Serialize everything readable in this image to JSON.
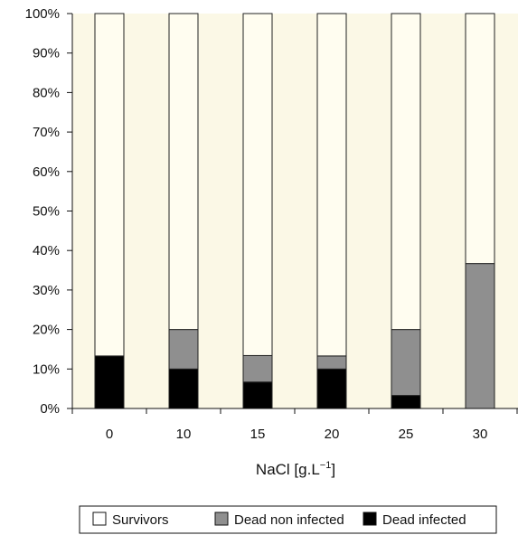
{
  "chart_data": {
    "type": "bar",
    "stacked": true,
    "percent_stacked": true,
    "categories": [
      "0",
      "10",
      "15",
      "20",
      "25",
      "30"
    ],
    "series": [
      {
        "name": "Dead infected",
        "values": [
          13.3,
          10.0,
          6.7,
          10.0,
          3.3,
          0.0
        ],
        "color": "#000000"
      },
      {
        "name": "Dead non infected",
        "values": [
          0.0,
          10.0,
          6.7,
          3.3,
          16.7,
          36.7
        ],
        "color": "#8f8f8f"
      },
      {
        "name": "Survivors",
        "values": [
          86.7,
          80.0,
          86.6,
          86.7,
          80.0,
          63.3
        ],
        "color": "#fffdf0"
      }
    ],
    "title": "",
    "xlabel_main": "NaCl [g.L",
    "xlabel_sup": "−1",
    "xlabel_close": "]",
    "ylabel": "",
    "ylim": [
      0,
      100
    ],
    "y_ticks": [
      "0%",
      "10%",
      "20%",
      "30%",
      "40%",
      "50%",
      "60%",
      "70%",
      "80%",
      "90%",
      "100%"
    ],
    "legend_position": "bottom",
    "legend_order": [
      "Survivors",
      "Dead non infected",
      "Dead infected"
    ],
    "plot_background": "#fbf8e6",
    "grid": false
  }
}
